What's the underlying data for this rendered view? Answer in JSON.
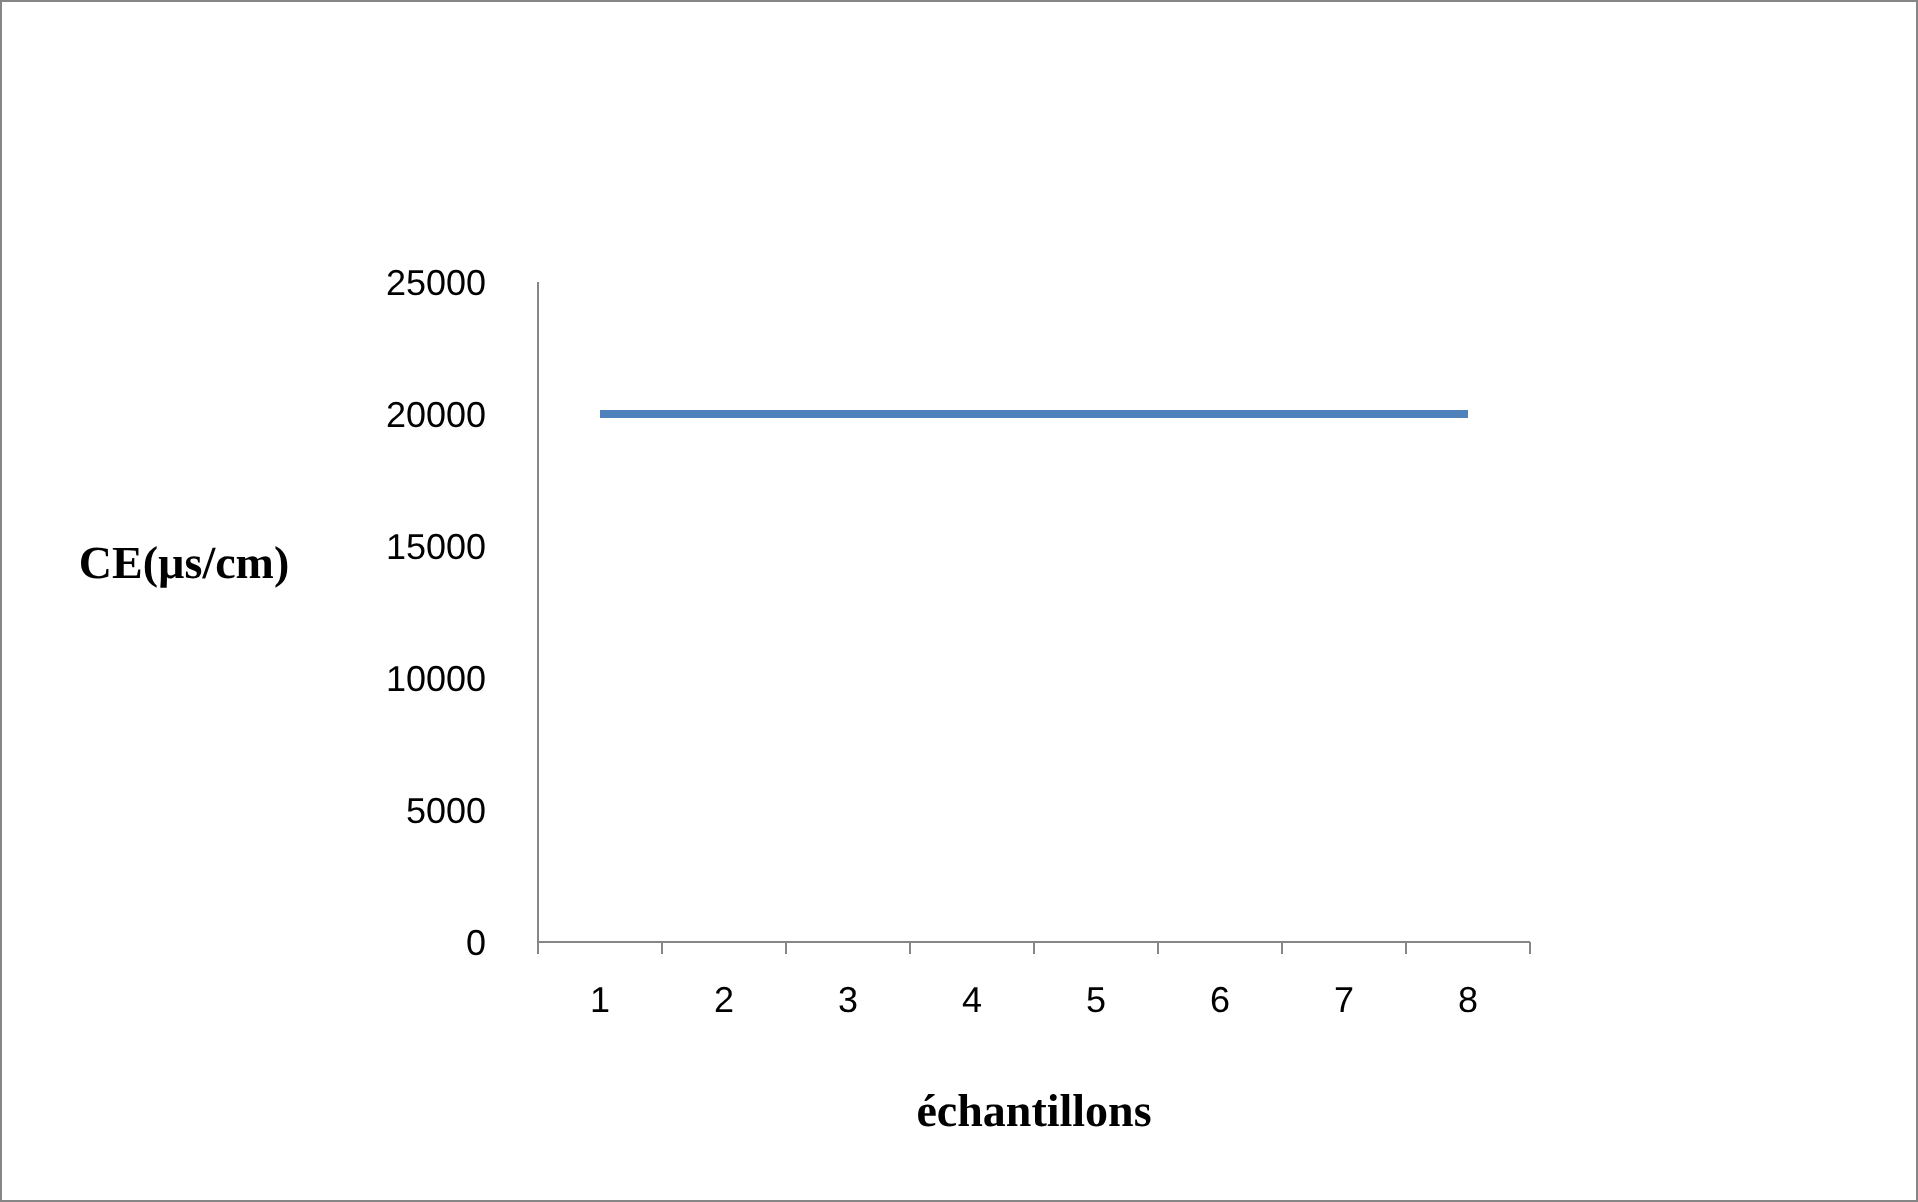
{
  "chart_data": {
    "type": "line",
    "xlabel": "échantillons",
    "ylabel": "CE(µs/cm)",
    "categories": [
      "1",
      "2",
      "3",
      "4",
      "5",
      "6",
      "7",
      "8"
    ],
    "series": [
      {
        "color": "#4f81bd",
        "values": [
          20000,
          20000,
          20000,
          20000,
          20000,
          20000,
          20000,
          20000
        ]
      }
    ],
    "ylim": [
      0,
      25000
    ],
    "yticks": [
      0,
      5000,
      10000,
      15000,
      20000,
      25000
    ],
    "grid": false,
    "marker": "none",
    "line_style": "solid"
  }
}
